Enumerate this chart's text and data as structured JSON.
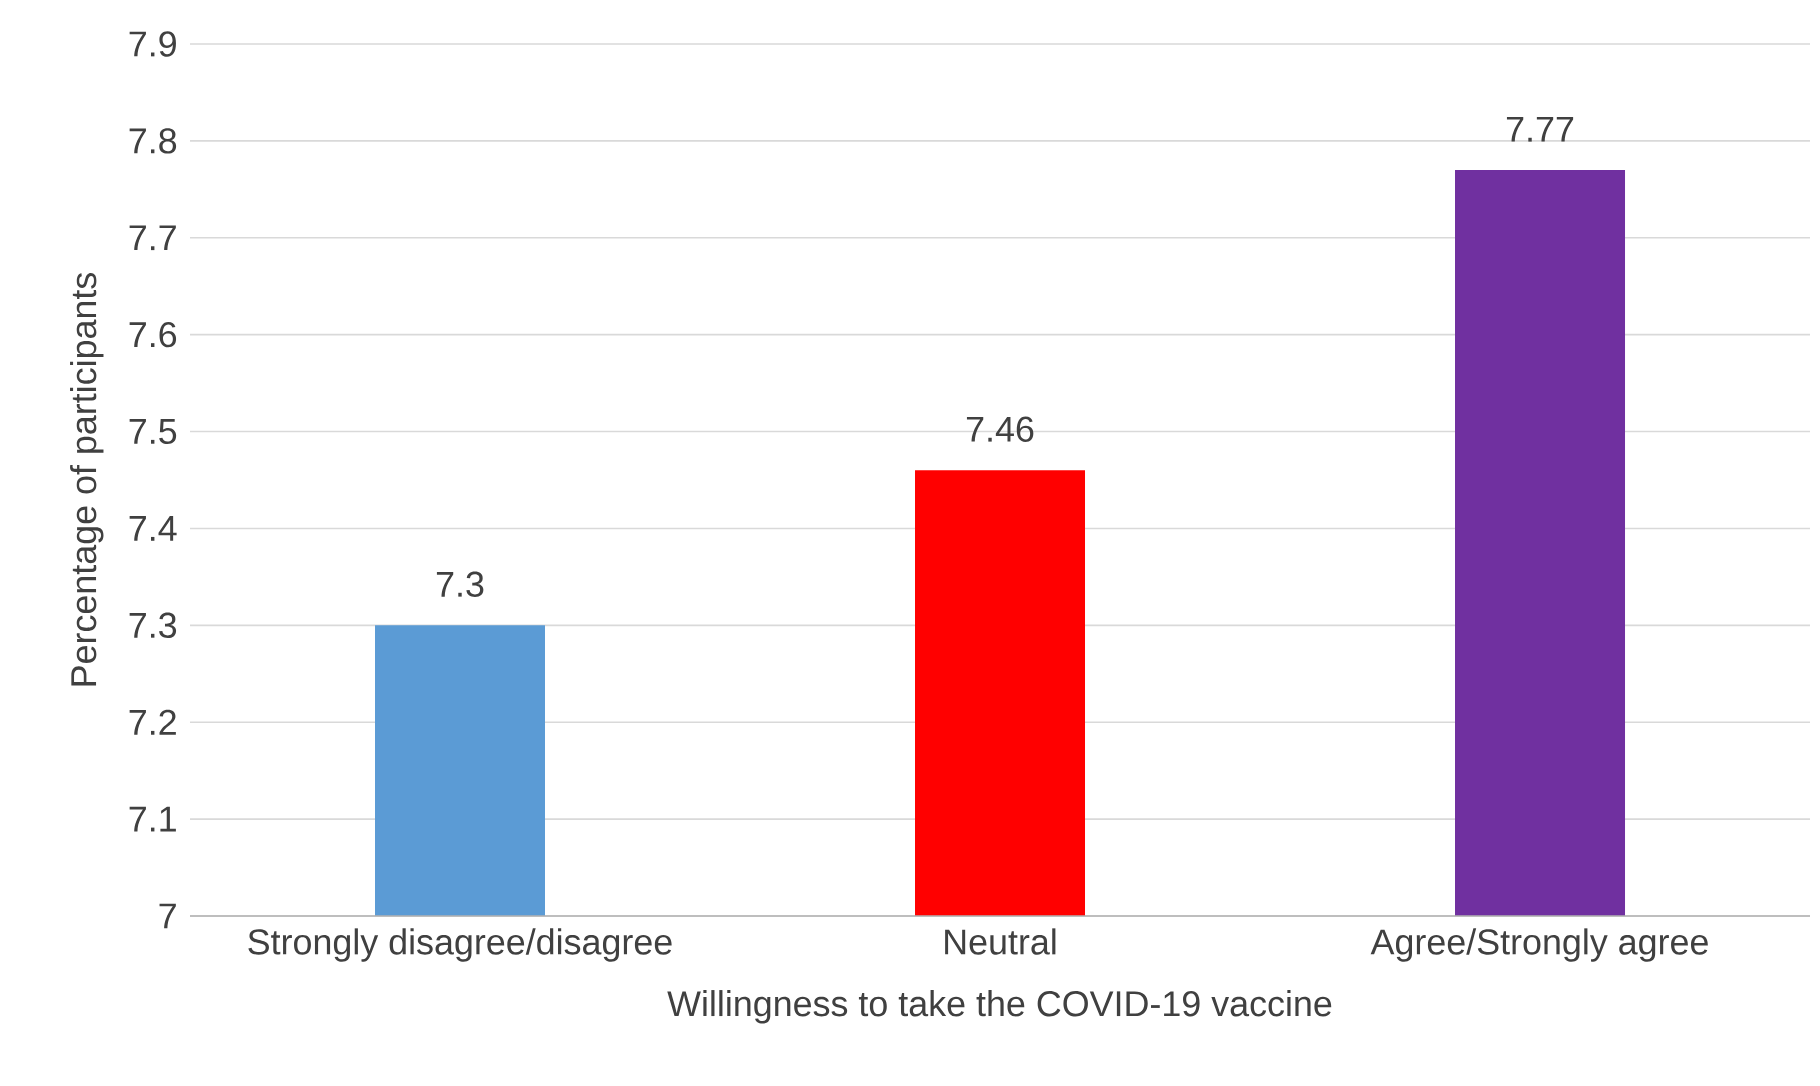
{
  "chart_data": {
    "type": "bar",
    "xlabel": "Willingness to take the COVID-19 vaccine",
    "ylabel": "Percentage of participants",
    "categories": [
      "Strongly disagree/disagree",
      "Neutral",
      "Agree/Strongly agree"
    ],
    "values": [
      7.3,
      7.46,
      7.77
    ],
    "colors": [
      "#5b9bd5",
      "#ff0000",
      "#7030a0"
    ],
    "ylim": [
      7,
      7.9
    ],
    "yticks": [
      7,
      7.1,
      7.2,
      7.3,
      7.4,
      7.5,
      7.6,
      7.7,
      7.8,
      7.9
    ],
    "grid": "y",
    "data_labels": true
  }
}
